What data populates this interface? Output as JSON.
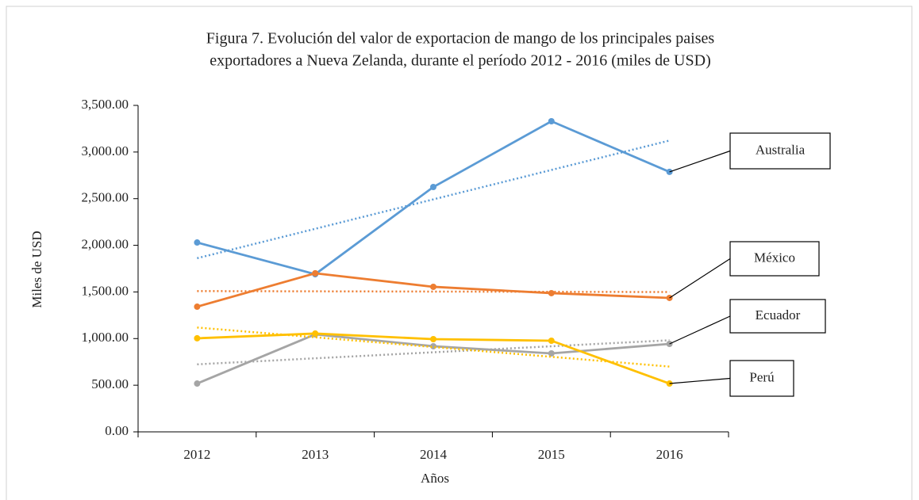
{
  "chart_data": {
    "type": "line",
    "title": [
      "Figura 7. Evolución del valor de exportacion de mango de los principales paises",
      "exportadores a Nueva Zelanda, durante el período 2012 - 2016 (miles de USD)"
    ],
    "x_label": "Años",
    "y_label": "Miles de USD",
    "categories": [
      "2012",
      "2013",
      "2014",
      "2015",
      "2016"
    ],
    "series": [
      {
        "name": "Australia",
        "color": "#5b9bd5",
        "values": [
          2030,
          1690,
          2625,
          3330,
          2787
        ]
      },
      {
        "name": "México",
        "color": "#ed7d31",
        "values": [
          1342,
          1700,
          1555,
          1487,
          1436
        ]
      },
      {
        "name": "Ecuador",
        "color": "#a5a5a5",
        "values": [
          518,
          1045,
          918,
          841,
          943
        ]
      },
      {
        "name": "Perú",
        "color": "#ffc000",
        "values": [
          1003,
          1054,
          994,
          977,
          518
        ]
      }
    ],
    "ylim": [
      0,
      3500
    ],
    "yticks": [
      {
        "value": 0,
        "label": "0.00"
      },
      {
        "value": 500,
        "label": "500.00"
      },
      {
        "value": 1000,
        "label": "1,000.00"
      },
      {
        "value": 1500,
        "label": "1,500.00"
      },
      {
        "value": 2000,
        "label": "2,000.00"
      },
      {
        "value": 2500,
        "label": "2,500.00"
      },
      {
        "value": 3000,
        "label": "3,000.00"
      },
      {
        "value": 3500,
        "label": "3,500.00"
      }
    ],
    "trendline": true,
    "grid": false,
    "legend": "right"
  }
}
